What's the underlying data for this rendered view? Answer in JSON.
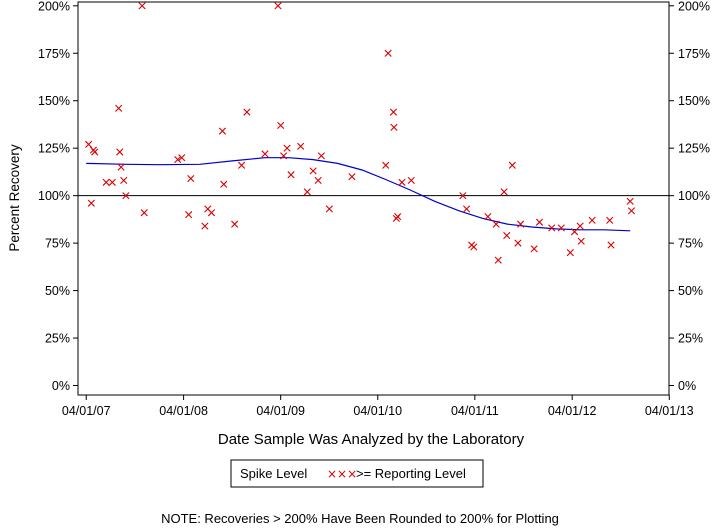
{
  "chart_data": {
    "type": "scatter",
    "xlabel": "Date Sample Was Analyzed by the Laboratory",
    "ylabel": "Percent Recovery",
    "x_ticks": [
      "04/01/07",
      "04/01/08",
      "04/01/09",
      "04/01/10",
      "04/01/11",
      "04/01/12",
      "04/01/13"
    ],
    "y_ticks": [
      "0%",
      "25%",
      "50%",
      "75%",
      "100%",
      "125%",
      "150%",
      "175%",
      "200%"
    ],
    "xlim": [
      "2007-03-01",
      "2013-03-31"
    ],
    "ylim": [
      -5,
      202
    ],
    "reference_line": 100,
    "legend": {
      "title": "Spike Level",
      "marker": "×××",
      "entry": ">= Reporting Level"
    },
    "note": "NOTE: Recoveries > 200% Have Been Rounded to 200% for Plotting",
    "colors": {
      "points": "#dd0000",
      "trend": "#0000cc",
      "reference": "#000000"
    },
    "series": [
      {
        "marker": "x",
        "points": [
          [
            "2007-04-10",
            127
          ],
          [
            "2007-04-20",
            96
          ],
          [
            "2007-04-28",
            124
          ],
          [
            "2007-05-03",
            123
          ],
          [
            "2007-06-15",
            107
          ],
          [
            "2007-07-08",
            107
          ],
          [
            "2007-08-01",
            146
          ],
          [
            "2007-08-05",
            123
          ],
          [
            "2007-08-10",
            115
          ],
          [
            "2007-08-20",
            108
          ],
          [
            "2007-08-28",
            100
          ],
          [
            "2007-10-28",
            200
          ],
          [
            "2007-11-05",
            91
          ],
          [
            "2008-03-10",
            119
          ],
          [
            "2008-03-25",
            120
          ],
          [
            "2008-04-20",
            90
          ],
          [
            "2008-04-28",
            109
          ],
          [
            "2008-06-20",
            84
          ],
          [
            "2008-07-01",
            93
          ],
          [
            "2008-07-15",
            91
          ],
          [
            "2008-08-25",
            134
          ],
          [
            "2008-08-30",
            106
          ],
          [
            "2008-10-10",
            85
          ],
          [
            "2008-11-05",
            116
          ],
          [
            "2008-11-25",
            144
          ],
          [
            "2009-02-01",
            122
          ],
          [
            "2009-03-22",
            200
          ],
          [
            "2009-04-01",
            137
          ],
          [
            "2009-04-12",
            121
          ],
          [
            "2009-04-25",
            125
          ],
          [
            "2009-05-10",
            111
          ],
          [
            "2009-06-15",
            126
          ],
          [
            "2009-07-10",
            102
          ],
          [
            "2009-08-01",
            113
          ],
          [
            "2009-08-20",
            108
          ],
          [
            "2009-09-01",
            121
          ],
          [
            "2009-10-01",
            93
          ],
          [
            "2009-12-25",
            110
          ],
          [
            "2010-05-01",
            116
          ],
          [
            "2010-05-10",
            175
          ],
          [
            "2010-05-30",
            144
          ],
          [
            "2010-06-01",
            136
          ],
          [
            "2010-06-10",
            88
          ],
          [
            "2010-06-15",
            89
          ],
          [
            "2010-07-01",
            107
          ],
          [
            "2010-08-05",
            108
          ],
          [
            "2011-02-15",
            100
          ],
          [
            "2011-03-01",
            93
          ],
          [
            "2011-03-20",
            74
          ],
          [
            "2011-03-28",
            73
          ],
          [
            "2011-05-20",
            89
          ],
          [
            "2011-06-20",
            85
          ],
          [
            "2011-06-28",
            66
          ],
          [
            "2011-07-20",
            102
          ],
          [
            "2011-07-30",
            79
          ],
          [
            "2011-08-20",
            116
          ],
          [
            "2011-09-10",
            75
          ],
          [
            "2011-09-20",
            85
          ],
          [
            "2011-11-10",
            72
          ],
          [
            "2011-11-30",
            86
          ],
          [
            "2012-01-15",
            83
          ],
          [
            "2012-02-20",
            83
          ],
          [
            "2012-03-25",
            70
          ],
          [
            "2012-04-10",
            81
          ],
          [
            "2012-05-01",
            84
          ],
          [
            "2012-05-05",
            76
          ],
          [
            "2012-06-15",
            87
          ],
          [
            "2012-08-20",
            87
          ],
          [
            "2012-08-25",
            74
          ],
          [
            "2012-11-05",
            97
          ],
          [
            "2012-11-10",
            92
          ]
        ]
      }
    ],
    "trend": [
      [
        "2007-04-01",
        117
      ],
      [
        "2007-09-01",
        116.5
      ],
      [
        "2008-01-01",
        116.3
      ],
      [
        "2008-06-01",
        116.5
      ],
      [
        "2008-10-01",
        118.3
      ],
      [
        "2009-02-01",
        120
      ],
      [
        "2009-05-01",
        120
      ],
      [
        "2009-08-01",
        119
      ],
      [
        "2009-11-01",
        117
      ],
      [
        "2010-02-01",
        113.5
      ],
      [
        "2010-05-01",
        108.5
      ],
      [
        "2010-08-01",
        103
      ],
      [
        "2010-11-01",
        97
      ],
      [
        "2011-02-01",
        92
      ],
      [
        "2011-05-01",
        88
      ],
      [
        "2011-08-01",
        85
      ],
      [
        "2011-11-01",
        83.5
      ],
      [
        "2012-02-01",
        82.5
      ],
      [
        "2012-05-01",
        82
      ],
      [
        "2012-08-01",
        82
      ],
      [
        "2012-11-05",
        81.5
      ]
    ]
  }
}
